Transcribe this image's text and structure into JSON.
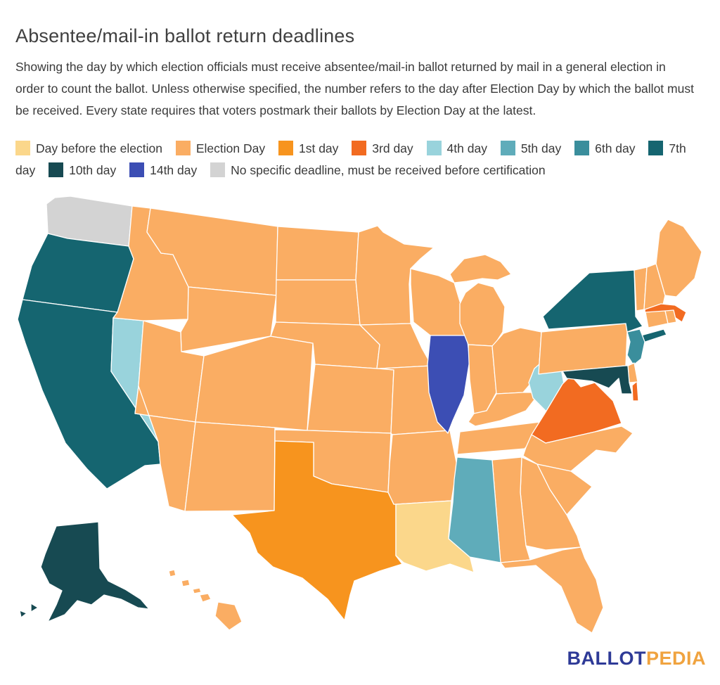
{
  "header": {
    "title": "Absentee/mail-in ballot return deadlines",
    "description": "Showing the day by which election officials must receive absentee/mail-in ballot returned by mail in a general election in order to count the ballot. Unless otherwise specified, the number refers to the day after Election Day by which the ballot must be received. Every state requires that voters postmark their ballots by Election Day at the latest."
  },
  "legend": {
    "items": [
      {
        "id": "day_before",
        "label": "Day before the election",
        "color": "#FBD78B"
      },
      {
        "id": "election_day",
        "label": "Election Day",
        "color": "#FAAD63"
      },
      {
        "id": "day1",
        "label": "1st day",
        "color": "#F7941E"
      },
      {
        "id": "day3",
        "label": "3rd day",
        "color": "#F26B21"
      },
      {
        "id": "day4",
        "label": "4th day",
        "color": "#99D3DC"
      },
      {
        "id": "day5",
        "label": "5th day",
        "color": "#5FACBA"
      },
      {
        "id": "day6",
        "label": "6th day",
        "color": "#3A8E9C"
      },
      {
        "id": "day7",
        "label": "7th day",
        "color": "#156570"
      },
      {
        "id": "day10",
        "label": "10th day",
        "color": "#174A52"
      },
      {
        "id": "day14",
        "label": "14th day",
        "color": "#3C4EB4"
      },
      {
        "id": "none",
        "label": "No specific deadline, must be received before certification",
        "color": "#D3D3D3"
      }
    ]
  },
  "map": {
    "stroke_color": "#ffffff",
    "state_categories": {
      "WA": "none",
      "OR": "day7",
      "CA": "day7",
      "NY": "day7",
      "AK": "day10",
      "MD": "day10",
      "NV": "day4",
      "WV": "day4",
      "MS": "day5",
      "NJ": "day6",
      "IL": "day14",
      "TX": "day1",
      "VA": "day3",
      "MA": "day3",
      "LA": "day_before",
      "ID": "election_day",
      "MT": "election_day",
      "WY": "election_day",
      "UT": "election_day",
      "AZ": "election_day",
      "NM": "election_day",
      "CO": "election_day",
      "ND": "election_day",
      "SD": "election_day",
      "NE": "election_day",
      "KS": "election_day",
      "OK": "election_day",
      "MN": "election_day",
      "IA": "election_day",
      "MO": "election_day",
      "AR": "election_day",
      "WI": "election_day",
      "MI": "election_day",
      "IN": "election_day",
      "OH": "election_day",
      "KY": "election_day",
      "TN": "election_day",
      "AL": "election_day",
      "GA": "election_day",
      "FL": "election_day",
      "SC": "election_day",
      "NC": "election_day",
      "PA": "election_day",
      "DE": "election_day",
      "CT": "election_day",
      "RI": "election_day",
      "VT": "election_day",
      "NH": "election_day",
      "ME": "election_day",
      "HI": "election_day"
    }
  },
  "logo": {
    "text_primary": "BALLOT",
    "text_secondary": "PEDIA",
    "primary_color": "#2E3A97",
    "secondary_color": "#F0A33F"
  }
}
